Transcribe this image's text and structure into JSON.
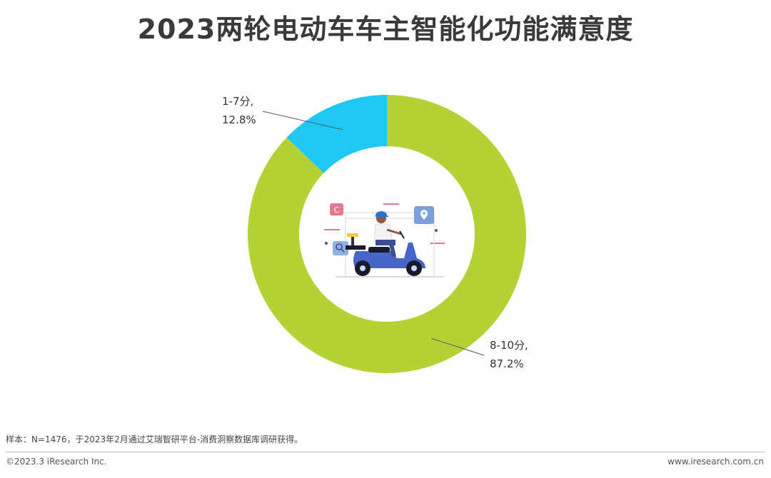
{
  "page": {
    "title": "2023两轮电动车车主智能化功能满意度",
    "note": "样本：N=1476，于2023年2月通过艾瑞智研平台-消费洞察数据库调研获得。",
    "copyright": "©2023.3 iResearch Inc.",
    "site": "www.iresearch.com.cn"
  },
  "chart_data": {
    "type": "pie",
    "donut": true,
    "title": "2023两轮电动车车主智能化功能满意度",
    "slices": [
      {
        "label": "8-10分,",
        "value": 87.2,
        "value_label": "87.2%",
        "color": "#b3d334"
      },
      {
        "label": "1-7分,",
        "value": 12.8,
        "value_label": "12.8%",
        "color": "#1ec8f2"
      }
    ],
    "start": "12 o'clock",
    "direction": "clockwise",
    "center_icon": "scooter-rider-illustration"
  }
}
